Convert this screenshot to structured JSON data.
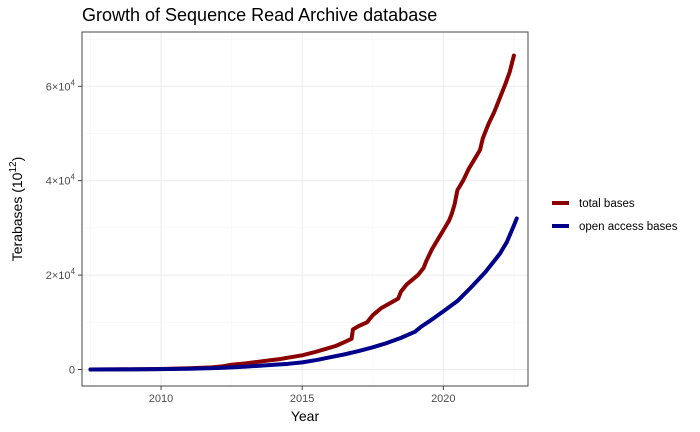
{
  "chart_data": {
    "type": "line",
    "title": "Growth of Sequence Read Archive database",
    "xlabel": "Year",
    "ylabel": "Terabases",
    "ylabel_unit_base": "(10",
    "ylabel_unit_exp": "12",
    "ylabel_unit_close": ")",
    "xlim": [
      2007.2,
      2023.0
    ],
    "ylim": [
      -3500,
      71500
    ],
    "x_ticks": [
      2010,
      2015,
      2020
    ],
    "x_tick_labels": [
      "2010",
      "2015",
      "2020"
    ],
    "y_ticks": [
      0,
      20000,
      40000,
      60000
    ],
    "y_tick_labels": [
      {
        "base": "0",
        "exp": ""
      },
      {
        "base": "2×10",
        "exp": "4"
      },
      {
        "base": "4×10",
        "exp": "4"
      },
      {
        "base": "6×10",
        "exp": "4"
      }
    ],
    "grid": true,
    "legend_position": "right",
    "series": [
      {
        "name": "total bases",
        "color": "#8b0000",
        "points": [
          [
            2007.5,
            0
          ],
          [
            2009.0,
            40
          ],
          [
            2010.0,
            100
          ],
          [
            2011.0,
            250
          ],
          [
            2011.8,
            450
          ],
          [
            2012.2,
            700
          ],
          [
            2012.5,
            1000
          ],
          [
            2013.0,
            1300
          ],
          [
            2013.4,
            1600
          ],
          [
            2013.8,
            1900
          ],
          [
            2014.2,
            2200
          ],
          [
            2014.6,
            2600
          ],
          [
            2015.0,
            3000
          ],
          [
            2015.4,
            3600
          ],
          [
            2015.8,
            4300
          ],
          [
            2016.2,
            5000
          ],
          [
            2016.5,
            5800
          ],
          [
            2016.75,
            6500
          ],
          [
            2016.8,
            8500
          ],
          [
            2017.0,
            9200
          ],
          [
            2017.3,
            10000
          ],
          [
            2017.5,
            11500
          ],
          [
            2017.8,
            13000
          ],
          [
            2018.1,
            14000
          ],
          [
            2018.4,
            15000
          ],
          [
            2018.5,
            16500
          ],
          [
            2018.7,
            18000
          ],
          [
            2018.9,
            19000
          ],
          [
            2019.1,
            20000
          ],
          [
            2019.3,
            21500
          ],
          [
            2019.4,
            23000
          ],
          [
            2019.6,
            25500
          ],
          [
            2019.8,
            27500
          ],
          [
            2020.0,
            29500
          ],
          [
            2020.2,
            31500
          ],
          [
            2020.3,
            33000
          ],
          [
            2020.4,
            35000
          ],
          [
            2020.5,
            38000
          ],
          [
            2020.7,
            40000
          ],
          [
            2020.9,
            42500
          ],
          [
            2021.1,
            44500
          ],
          [
            2021.3,
            46500
          ],
          [
            2021.4,
            49000
          ],
          [
            2021.6,
            52000
          ],
          [
            2021.8,
            54500
          ],
          [
            2022.0,
            57500
          ],
          [
            2022.2,
            60500
          ],
          [
            2022.35,
            63000
          ],
          [
            2022.5,
            66500
          ]
        ]
      },
      {
        "name": "open access bases",
        "color": "#00008b",
        "points": [
          [
            2007.5,
            0
          ],
          [
            2009.0,
            30
          ],
          [
            2010.0,
            70
          ],
          [
            2011.0,
            150
          ],
          [
            2012.0,
            300
          ],
          [
            2012.5,
            450
          ],
          [
            2013.0,
            600
          ],
          [
            2013.5,
            800
          ],
          [
            2014.0,
            1000
          ],
          [
            2014.5,
            1200
          ],
          [
            2015.0,
            1500
          ],
          [
            2015.5,
            2000
          ],
          [
            2016.0,
            2600
          ],
          [
            2016.5,
            3200
          ],
          [
            2017.0,
            3900
          ],
          [
            2017.5,
            4700
          ],
          [
            2018.0,
            5600
          ],
          [
            2018.5,
            6700
          ],
          [
            2019.0,
            8000
          ],
          [
            2019.2,
            9000
          ],
          [
            2019.5,
            10200
          ],
          [
            2020.0,
            12300
          ],
          [
            2020.5,
            14500
          ],
          [
            2021.0,
            17500
          ],
          [
            2021.5,
            20700
          ],
          [
            2022.0,
            24500
          ],
          [
            2022.25,
            27000
          ],
          [
            2022.5,
            30500
          ],
          [
            2022.6,
            32000
          ]
        ]
      }
    ]
  }
}
